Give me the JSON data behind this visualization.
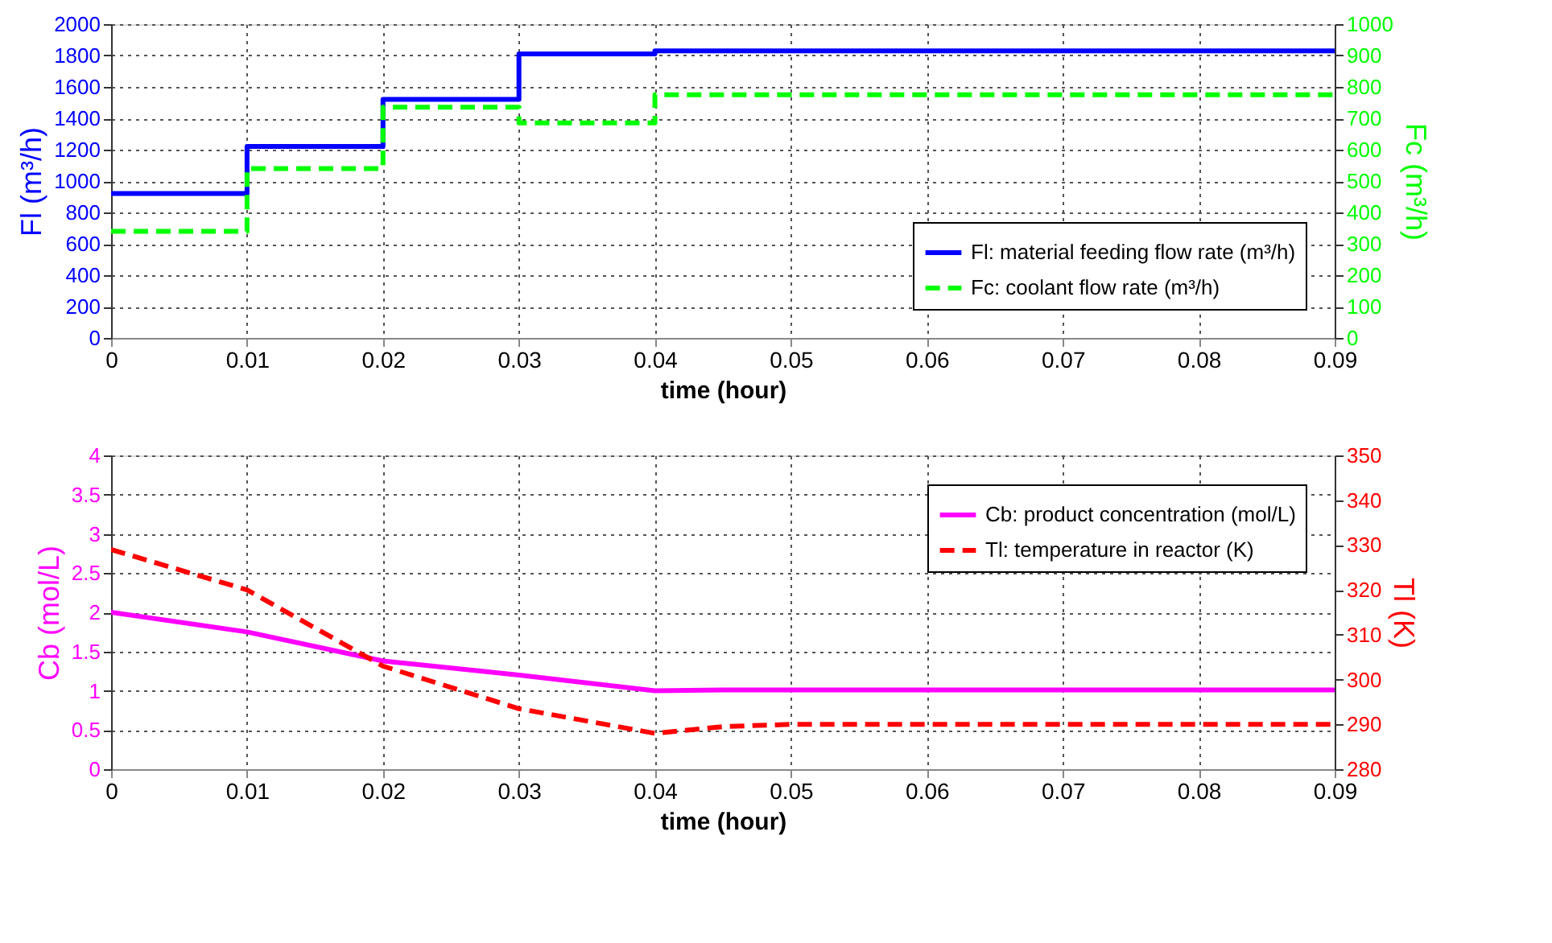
{
  "chart_data": [
    {
      "type": "step",
      "xlabel": "time (hour)",
      "ylabel": "Fl (m³/h)",
      "y2label": "Fc (m³/h)",
      "x": [
        0,
        0.01,
        0.02,
        0.03,
        0.04,
        0.09
      ],
      "series": [
        {
          "name": "Fl: material feeding flow rate (m³/h)",
          "color": "#0000ff",
          "values": [
            920,
            1220,
            1520,
            1810,
            1830,
            1830
          ],
          "line_style": "solid"
        },
        {
          "name": "Fc: coolant flow rate (m³/h)",
          "color": "#00ff00",
          "values": [
            340,
            540,
            735,
            685,
            775,
            775
          ],
          "axis": "y2",
          "line_style": "dashed"
        }
      ],
      "xlim": [
        0,
        0.09
      ],
      "xticks": [
        0,
        0.01,
        0.02,
        0.03,
        0.04,
        0.05,
        0.06,
        0.07,
        0.08,
        0.09
      ],
      "ylim": [
        0,
        2000
      ],
      "yticks": [
        0,
        200,
        400,
        600,
        800,
        1000,
        1200,
        1400,
        1600,
        1800,
        2000
      ],
      "y2lim": [
        0,
        1000
      ],
      "y2ticks": [
        0,
        100,
        200,
        300,
        400,
        500,
        600,
        700,
        800,
        900,
        1000
      ],
      "grid": true,
      "legend": "bottom right"
    },
    {
      "type": "line",
      "xlabel": "time (hour)",
      "ylabel": "Cb (mol/L)",
      "y2label": "Tl (K)",
      "x": [
        0,
        0.01,
        0.02,
        0.03,
        0.04,
        0.045,
        0.05,
        0.09
      ],
      "series": [
        {
          "name": "Cb: product concentration (mol/L)",
          "color": "#ff00ff",
          "values": [
            2.0,
            1.75,
            1.38,
            1.2,
            1.0,
            1.01,
            1.01,
            1.01
          ],
          "line_style": "solid"
        },
        {
          "name": "Tl: temperature in reactor (K)",
          "color": "#ff0000",
          "values": [
            329,
            320,
            303,
            293.5,
            288,
            289.5,
            290,
            290
          ],
          "axis": "y2",
          "line_style": "dashed"
        }
      ],
      "xlim": [
        0,
        0.09
      ],
      "xticks": [
        0,
        0.01,
        0.02,
        0.03,
        0.04,
        0.05,
        0.06,
        0.07,
        0.08,
        0.09
      ],
      "ylim": [
        0,
        4
      ],
      "yticks": [
        0,
        0.5,
        1,
        1.5,
        2,
        2.5,
        3,
        3.5,
        4
      ],
      "y2lim": [
        280,
        350
      ],
      "y2ticks": [
        280,
        290,
        300,
        310,
        320,
        330,
        340,
        350
      ],
      "grid": true,
      "legend": "top right"
    }
  ]
}
